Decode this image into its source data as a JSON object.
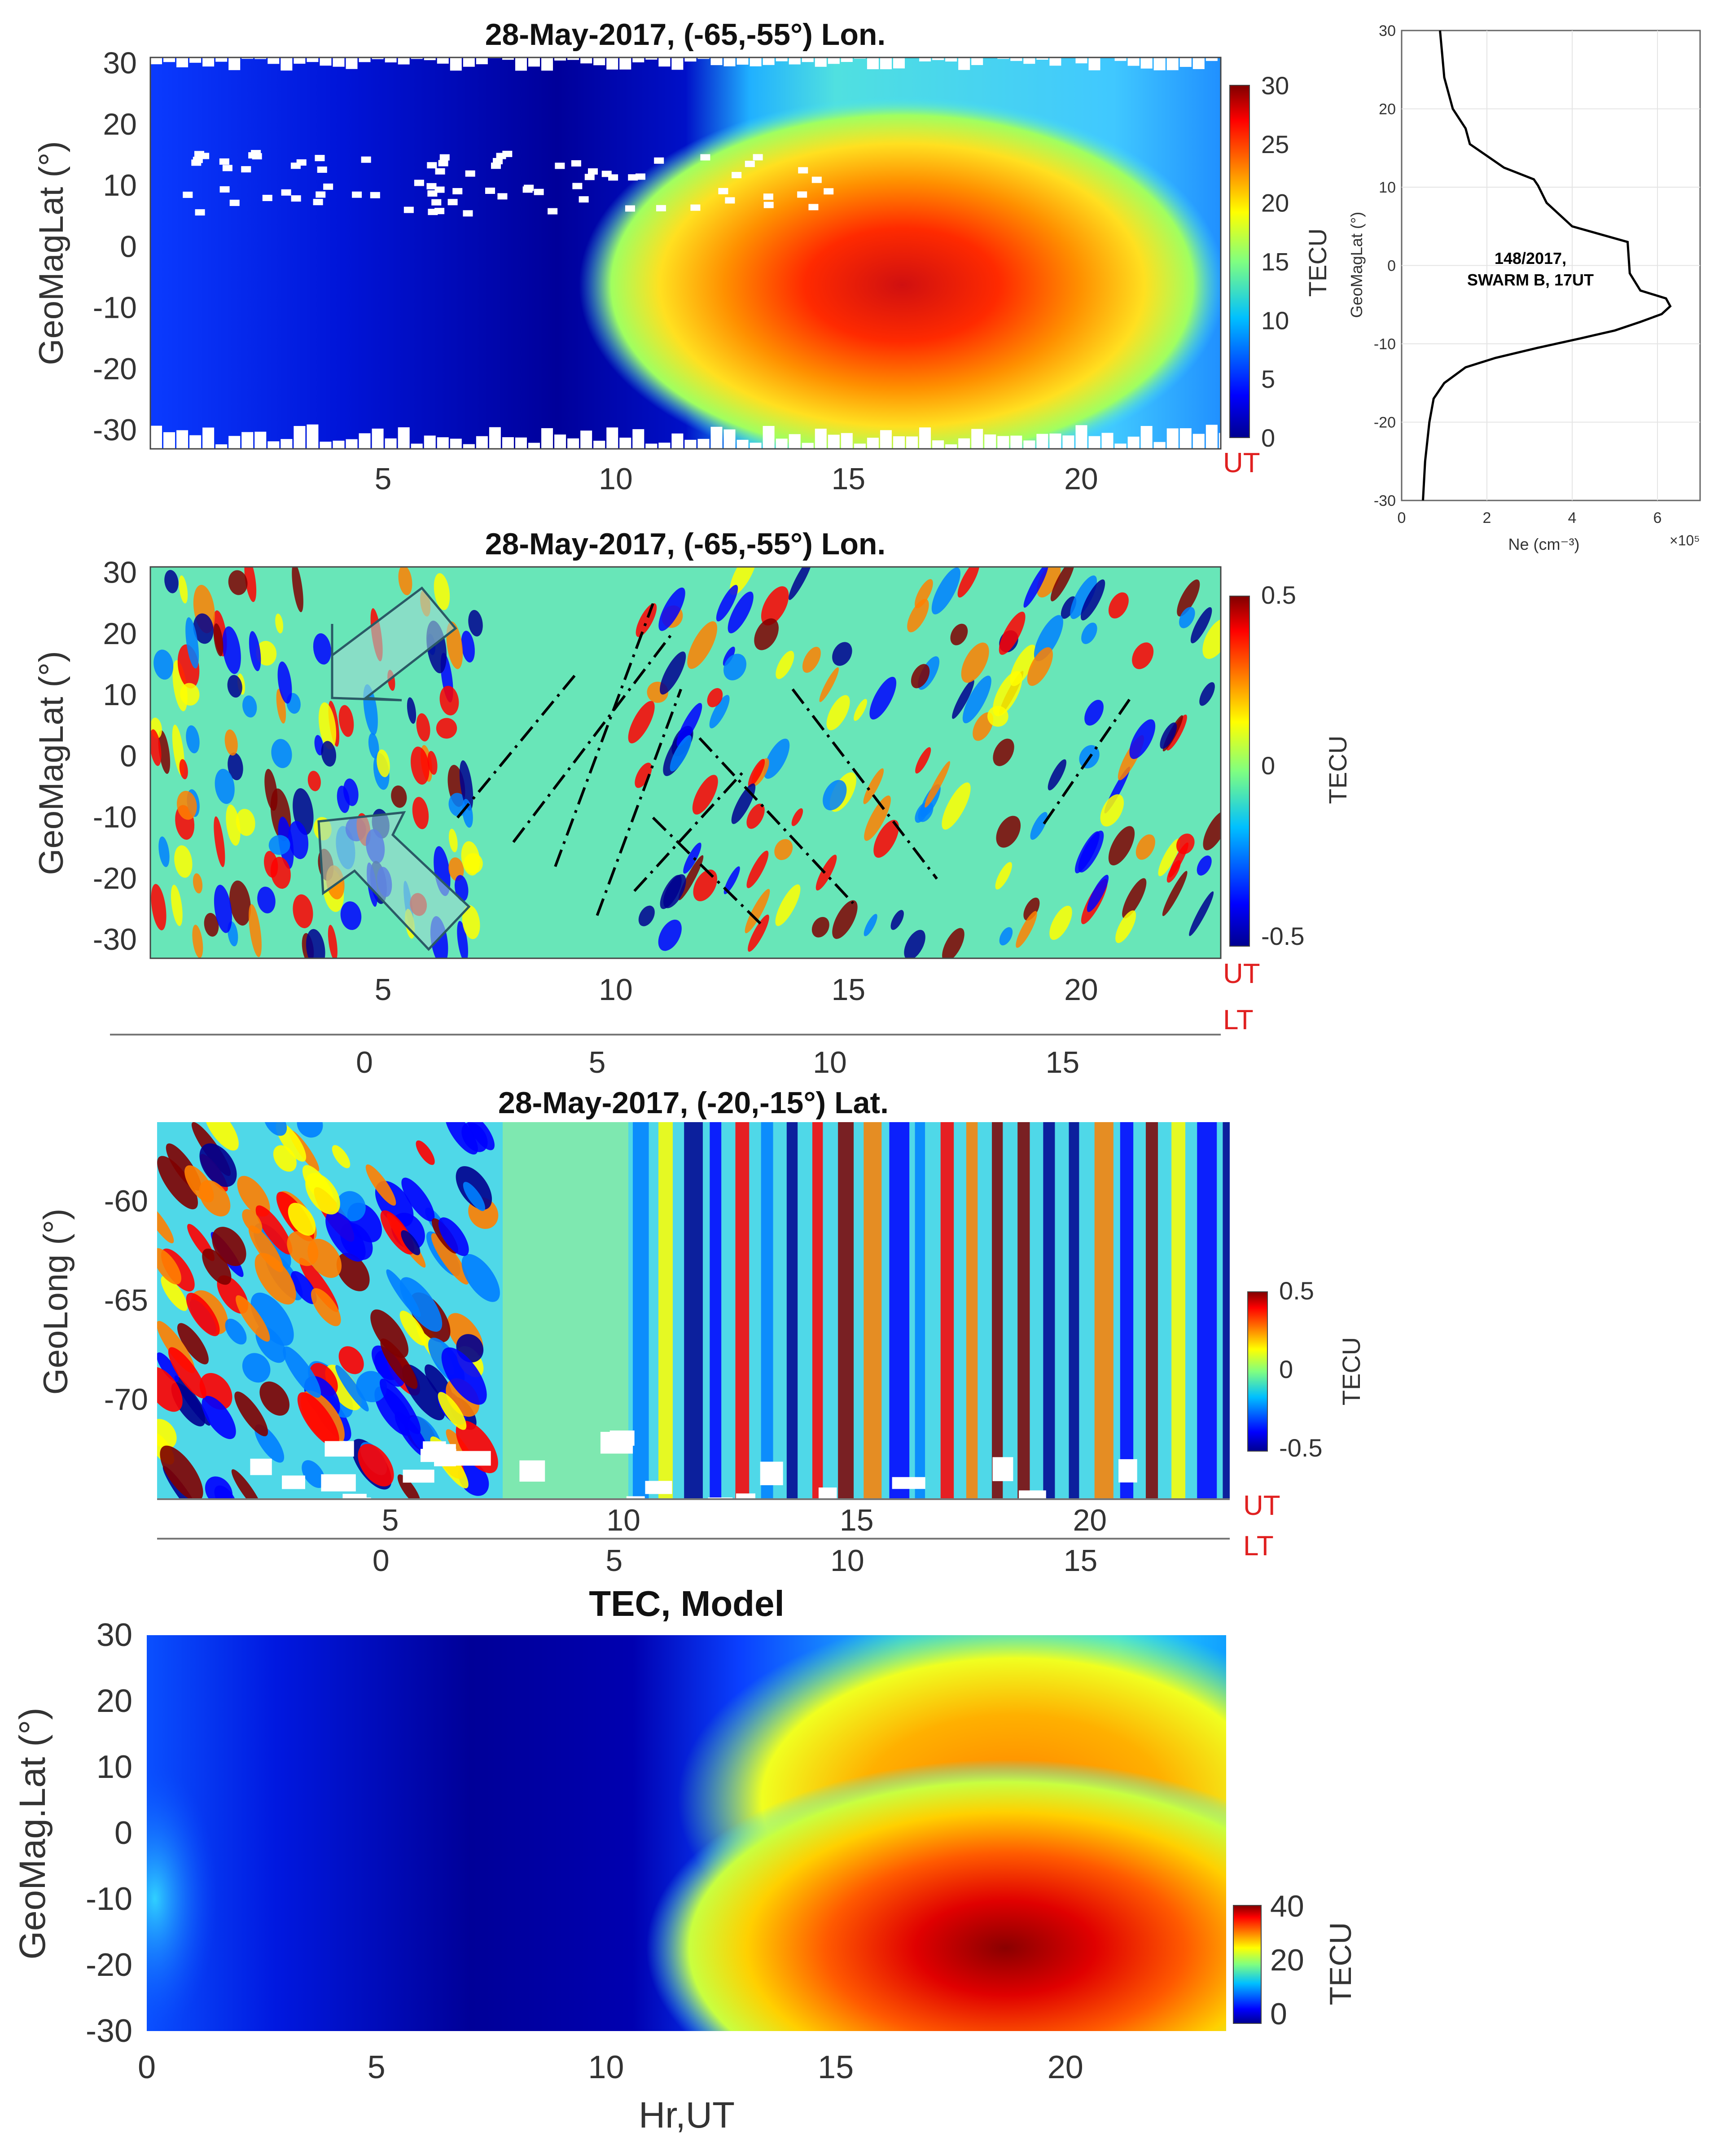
{
  "colors": {
    "jet": [
      "#00008f",
      "#0000ff",
      "#0080ff",
      "#00ffff",
      "#80ff80",
      "#ffff00",
      "#ff8000",
      "#ff0000",
      "#800000"
    ],
    "ut_lt_labels": "#e02020",
    "gap": "#ffffff"
  },
  "panels": {
    "p1": {
      "title": "28-May-2017, (-65,-55°) Lon.",
      "ylabel": "GeoMagLat (°)",
      "xlabel_ut": "UT",
      "colorbar_label": "TECU",
      "yticks": [
        "30",
        "20",
        "10",
        "0",
        "-10",
        "-20",
        "-30"
      ],
      "xticks": [
        "5",
        "10",
        "15",
        "20"
      ],
      "cticks": [
        "30",
        "25",
        "20",
        "15",
        "10",
        "5",
        "0"
      ]
    },
    "p2": {
      "title": "28-May-2017, (-65,-55°) Lon.",
      "ylabel": "GeoMagLat (°)",
      "xlabel_ut": "UT",
      "xlabel_lt": "LT",
      "colorbar_label": "TECU",
      "yticks": [
        "30",
        "20",
        "10",
        "0",
        "-10",
        "-20",
        "-30"
      ],
      "xticks_ut": [
        "5",
        "10",
        "15",
        "20"
      ],
      "xticks_lt": [
        "0",
        "5",
        "10",
        "15"
      ],
      "cticks": [
        "0.5",
        "0",
        "-0.5"
      ]
    },
    "p3": {
      "title": "28-May-2017, (-20,-15°) Lat.",
      "ylabel": "GeoLong (°)",
      "xlabel_ut": "UT",
      "xlabel_lt": "LT",
      "colorbar_label": "TECU",
      "yticks": [
        "-60",
        "-65",
        "-70"
      ],
      "xticks_ut": [
        "5",
        "10",
        "15",
        "20"
      ],
      "xticks_lt": [
        "0",
        "5",
        "10",
        "15"
      ],
      "cticks": [
        "0.5",
        "0",
        "-0.5"
      ]
    },
    "p4": {
      "title": "TEC, Model",
      "ylabel": "GeoMag.Lat (°)",
      "xlabel": "Hr,UT",
      "colorbar_label": "TECU",
      "yticks": [
        "30",
        "20",
        "10",
        "0",
        "-10",
        "-20",
        "-30"
      ],
      "xticks": [
        "0",
        "5",
        "10",
        "15",
        "20"
      ],
      "cticks": [
        "40",
        "20",
        "0"
      ]
    },
    "profile": {
      "annotation_line1": "148/2017,",
      "annotation_line2": "SWARM B, 17UT",
      "ylabel": "GeoMagLat (°)",
      "xlabel": "Ne (cm⁻³)",
      "x_multiplier": "×10⁵",
      "yticks": [
        "30",
        "20",
        "10",
        "0",
        "-10",
        "-20",
        "-30"
      ],
      "xticks": [
        "0",
        "2",
        "4",
        "6"
      ]
    }
  },
  "chart_data": [
    {
      "type": "heatmap",
      "title": "28-May-2017, (-65,-55°) Lon.",
      "xlabel": "UT",
      "ylabel": "GeoMagLat (°)",
      "xlim": [
        0,
        23
      ],
      "ylim": [
        -33,
        31
      ],
      "colorbar": {
        "label": "TECU",
        "range": [
          0,
          30
        ]
      },
      "features": [
        {
          "x_center": 16,
          "y_center": -7,
          "value": 28
        },
        {
          "x_center": 7.5,
          "y_center": -8,
          "value": 1
        }
      ]
    },
    {
      "type": "heatmap",
      "title": "28-May-2017, (-65,-55°) Lon.",
      "xlabel": "UT",
      "ylabel": "GeoMagLat (°)",
      "secondary_xlabel": "LT",
      "lt_offset_hours": -4.6,
      "xlim": [
        0,
        23
      ],
      "ylim": [
        -33,
        31
      ],
      "colorbar": {
        "label": "TECU",
        "range": [
          -0.5,
          0.5
        ]
      }
    },
    {
      "type": "heatmap",
      "title": "28-May-2017, (-20,-15°) Lat.",
      "xlabel": "UT",
      "ylabel": "GeoLong (°)",
      "secondary_xlabel": "LT",
      "lt_offset_hours": -4.8,
      "xlim": [
        0,
        23
      ],
      "ylim": [
        -75,
        -56
      ],
      "colorbar": {
        "label": "TECU",
        "range": [
          -0.5,
          0.5
        ]
      }
    },
    {
      "type": "heatmap",
      "title": "TEC, Model",
      "xlabel": "Hr,UT",
      "ylabel": "GeoMag.Lat (°)",
      "xlim": [
        0,
        23.5
      ],
      "ylim": [
        -30,
        30
      ],
      "colorbar": {
        "label": "TECU",
        "range": [
          0,
          40
        ]
      },
      "features": [
        {
          "x_center": 18.5,
          "y_center": -17,
          "value": 40
        },
        {
          "x_center": 19,
          "y_center": 8,
          "value": 26
        }
      ]
    },
    {
      "type": "line",
      "xlabel": "Ne (cm⁻³)",
      "ylabel": "GeoMagLat (°)",
      "x_multiplier": 100000,
      "xlim": [
        0,
        7
      ],
      "ylim": [
        -30,
        30
      ],
      "series": [
        {
          "x": [
            0.5,
            0.55,
            0.65,
            0.75,
            1.0,
            1.5,
            2.2,
            3.2,
            4.2,
            5.0,
            5.6,
            6.1,
            6.3,
            6.2,
            5.6,
            5.35,
            5.3,
            4.0,
            3.4,
            3.2,
            3.1,
            2.4,
            2.0,
            1.6,
            1.5,
            1.2,
            1.0,
            0.95,
            0.9
          ],
          "y": [
            -30,
            -25,
            -20,
            -17,
            -15,
            -13,
            -11.8,
            -10.5,
            -9.3,
            -8.3,
            -7.2,
            -6.2,
            -5.2,
            -4.2,
            -3.2,
            -1.0,
            3.0,
            5.0,
            8.0,
            10.2,
            11.0,
            12.5,
            14.0,
            15.5,
            17.5,
            20.0,
            24.0,
            27.0,
            30.0
          ]
        }
      ]
    }
  ]
}
